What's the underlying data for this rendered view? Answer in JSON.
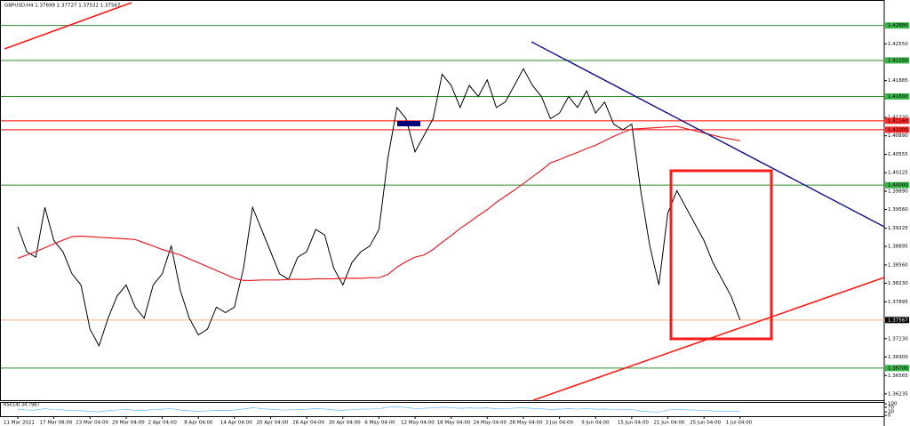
{
  "chart_data": {
    "type": "line",
    "title": "GBPUSD,H4 1.37699 1.37727 1.37532 1.37567",
    "ylim": [
      1.3612,
      1.4326
    ],
    "yticks": [
      {
        "value": 1.4255,
        "label": "1.42550"
      },
      1.41885,
      {
        "value": 1.4122,
        "label": "1.41220"
      },
      {
        "value": 1.4089,
        "label": "1.40890"
      },
      1.40555,
      1.40225,
      {
        "value": 1.3989,
        "label": "1.39890"
      },
      {
        "value": 1.3956,
        "label": "1.39560"
      },
      1.39225,
      1.38895,
      {
        "value": 1.3856,
        "label": "1.38560"
      },
      {
        "value": 1.3823,
        "label": "1.38230"
      },
      1.37895,
      {
        "value": 1.3723,
        "label": "1.37230"
      },
      {
        "value": 1.369,
        "label": "1.36900"
      },
      1.36565,
      1.36235
    ],
    "levels": [
      {
        "value": 1.4288,
        "label": "1.42880",
        "color": "#2e8b2e",
        "box": "#39b54a"
      },
      {
        "value": 1.4225,
        "label": "1.42250",
        "color": "#2e8b2e",
        "box": "#39b54a"
      },
      {
        "value": 1.416,
        "label": "1.41600",
        "color": "#2e8b2e",
        "box": "#39b54a"
      },
      {
        "value": 1.4116,
        "label": "1.41160",
        "color": "#ff0000",
        "box": "#ff2a2a"
      },
      {
        "value": 1.41,
        "label": "1.41000",
        "color": "#ff0000",
        "box": "#ff2a2a"
      },
      {
        "value": 1.4,
        "label": "1.40000",
        "color": "#2e8b2e",
        "box": "#39b54a"
      },
      {
        "value": 1.37567,
        "label": "1.37567",
        "color": "#f4b183",
        "box": "#000000"
      },
      {
        "value": 1.367,
        "label": "1.36700",
        "color": "#2e8b2e",
        "box": "#39b54a"
      }
    ],
    "categories": [
      "11 Mar 2021",
      null,
      null,
      null,
      "17 Mar 08:00",
      null,
      null,
      null,
      "23 Mar 04:00",
      null,
      null,
      null,
      "29 Mar 04:00",
      null,
      null,
      null,
      "2 Apr 04:00",
      null,
      null,
      null,
      "8 Apr 04:00",
      null,
      null,
      null,
      "14 Apr 04:00",
      null,
      null,
      null,
      "20 Apr 04:00",
      null,
      null,
      null,
      "26 Apr 04:00",
      null,
      null,
      null,
      "30 Apr 04:00",
      null,
      null,
      null,
      "6 May 04:00",
      null,
      null,
      null,
      "12 May 04:00",
      null,
      null,
      null,
      "18 May 04:00",
      null,
      null,
      null,
      "24 May 04:00",
      null,
      null,
      null,
      "28 May 04:00",
      null,
      null,
      null,
      "3 Jun 04:00",
      null,
      null,
      null,
      "9 Jun 04:00",
      null,
      null,
      null,
      "15 Jun 04:00",
      null,
      null,
      null,
      "21 Jun 04:00",
      null,
      null,
      null,
      "25 Jun 04:00",
      null,
      null,
      null,
      "1 Jul 04:00"
    ],
    "series": [
      {
        "color": "#000000",
        "values": [
          1.3925,
          1.388,
          1.387,
          1.396,
          1.39,
          1.388,
          1.384,
          1.382,
          1.374,
          1.371,
          1.376,
          1.38,
          1.382,
          1.378,
          1.376,
          1.382,
          1.384,
          1.389,
          1.381,
          1.376,
          1.373,
          1.374,
          1.378,
          1.377,
          1.378,
          1.385,
          1.396,
          1.392,
          1.388,
          1.384,
          1.383,
          1.387,
          1.388,
          1.392,
          1.391,
          1.385,
          1.382,
          1.386,
          1.388,
          1.389,
          1.392,
          1.405,
          1.414,
          1.412,
          1.406,
          1.409,
          1.412,
          1.42,
          1.418,
          1.414,
          1.418,
          1.416,
          1.419,
          1.414,
          1.415,
          1.418,
          1.421,
          1.418,
          1.416,
          1.412,
          1.413,
          1.416,
          1.414,
          1.417,
          1.413,
          1.415,
          1.411,
          1.41,
          1.411,
          1.399,
          1.389,
          1.382,
          1.395,
          1.399,
          1.396,
          1.393,
          1.39,
          1.386,
          1.383,
          1.38,
          1.37567
        ]
      },
      {
        "color": "#e8202a",
        "values": [
          1.3868,
          1.3874,
          1.388,
          1.3887,
          1.3894,
          1.3901,
          1.3907,
          1.3908,
          1.3907,
          1.3906,
          1.3905,
          1.3904,
          1.3903,
          1.3902,
          1.3896,
          1.389,
          1.3884,
          1.3879,
          1.3874,
          1.3867,
          1.386,
          1.3853,
          1.3846,
          1.3839,
          1.3832,
          1.3828,
          1.3828,
          1.3829,
          1.3829,
          1.3829,
          1.383,
          1.383,
          1.383,
          1.3831,
          1.3831,
          1.3831,
          1.3832,
          1.3832,
          1.3832,
          1.3833,
          1.3833,
          1.3839,
          1.3852,
          1.3862,
          1.387,
          1.3874,
          1.3884,
          1.3897,
          1.3909,
          1.3922,
          1.3933,
          1.3945,
          1.3956,
          1.3969,
          1.398,
          1.3991,
          1.4003,
          1.4015,
          1.4027,
          1.404,
          1.4046,
          1.4053,
          1.4059,
          1.4066,
          1.4072,
          1.408,
          1.4088,
          1.4095,
          1.4101,
          1.4102,
          1.4103,
          1.4104,
          1.4105,
          1.4106,
          1.4102,
          1.4098,
          1.4094,
          1.409,
          1.4086,
          1.4083,
          1.408
        ]
      }
    ],
    "rsi": {
      "label": "RSI(14) 34.7987",
      "color": "#4da6ff",
      "ylim": [
        0,
        100
      ],
      "yticks": [
        100,
        70,
        30,
        0
      ],
      "values": [
        52,
        46,
        45,
        58,
        50,
        47,
        42,
        40,
        33,
        30,
        40,
        46,
        49,
        43,
        41,
        50,
        53,
        58,
        45,
        39,
        36,
        38,
        44,
        43,
        45,
        55,
        66,
        58,
        52,
        47,
        46,
        51,
        52,
        57,
        55,
        47,
        44,
        50,
        53,
        54,
        58,
        70,
        74,
        68,
        58,
        61,
        64,
        70,
        66,
        60,
        64,
        61,
        64,
        57,
        58,
        62,
        65,
        59,
        56,
        51,
        53,
        57,
        54,
        58,
        52,
        55,
        50,
        48,
        50,
        38,
        30,
        27,
        46,
        52,
        48,
        45,
        42,
        38,
        36,
        33,
        34.7987
      ]
    }
  }
}
